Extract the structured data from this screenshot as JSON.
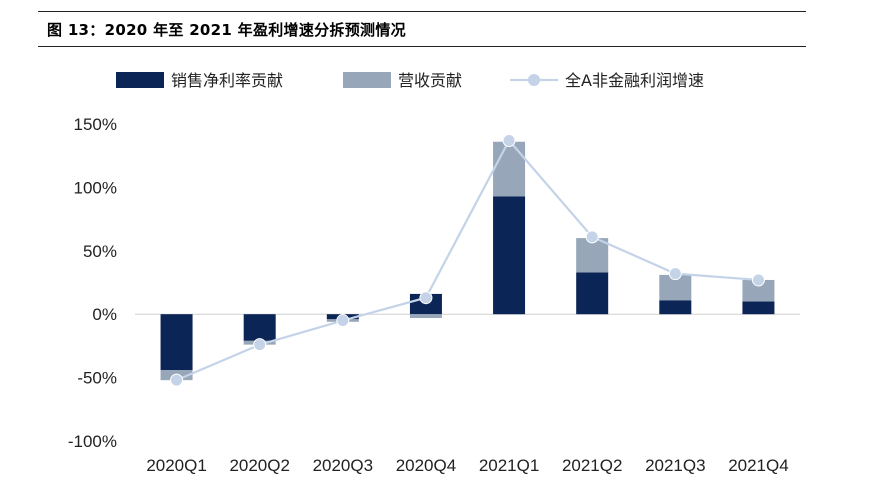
{
  "title": "图 13：2020 年至 2021 年盈利增速分拆预测情况",
  "colors": {
    "net_margin": "#0b2556",
    "revenue": "#97a6b8",
    "line": "#c4d3e8"
  },
  "chart_data": {
    "type": "bar",
    "title": "图 13：2020 年至 2021 年盈利增速分拆预测情况",
    "categories": [
      "2020Q1",
      "2020Q2",
      "2020Q3",
      "2020Q4",
      "2021Q1",
      "2021Q2",
      "2021Q3",
      "2021Q4"
    ],
    "ylim": [
      -100,
      150
    ],
    "yticks": [
      150,
      100,
      50,
      0,
      -50,
      -100
    ],
    "ytick_labels": [
      "150%",
      "100%",
      "50%",
      "0%",
      "-50%",
      "-100%"
    ],
    "legend_position": "top",
    "series": [
      {
        "name": "销售净利率贡献",
        "kind": "bar-stacked",
        "values": [
          -44,
          -21,
          -4,
          16,
          93,
          33,
          11,
          10
        ]
      },
      {
        "name": "营收贡献",
        "kind": "bar-stacked",
        "values": [
          -8,
          -3,
          -2,
          -3,
          43,
          27,
          20,
          17
        ]
      },
      {
        "name": "全A非金融利润增速",
        "kind": "line",
        "values": [
          -52,
          -24,
          -5,
          13,
          137,
          61,
          32,
          27
        ]
      }
    ]
  }
}
